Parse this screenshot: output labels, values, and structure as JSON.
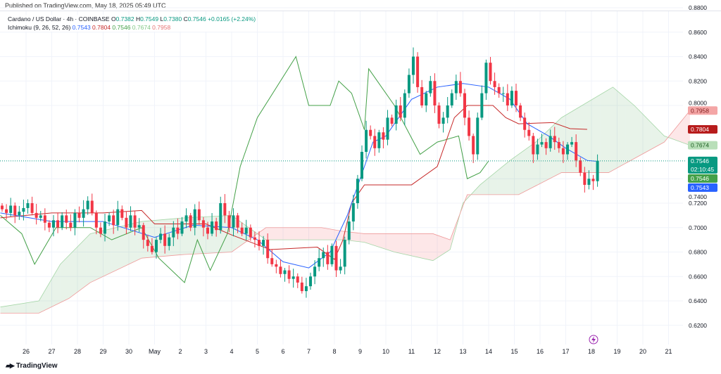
{
  "published": "Published on TradingView.com, May 18, 2025 05:49 UTC",
  "legend": {
    "symbol": "Cardano / US Dollar · 4h · COINBASE",
    "o_label": "O",
    "o": "0.7382",
    "h_label": "H",
    "h": "0.7549",
    "l_label": "L",
    "l": "0.7380",
    "c_label": "C",
    "c": "0.7546",
    "change": "+0.0165 (+2.24%)",
    "ichimoku": "Ichimoku (9, 26, 52, 26)",
    "v1": "0.7543",
    "v2": "0.7804",
    "v3": "0.7546",
    "v4": "0.7674",
    "v5": "0.7958"
  },
  "logo": "TradingView",
  "chart_data": {
    "type": "candlestick",
    "start": "04-25 00",
    "interval_hours": 4,
    "closes": [
      0.715,
      0.712,
      0.718,
      0.71,
      0.713,
      0.716,
      0.72,
      0.712,
      0.708,
      0.71,
      0.704,
      0.7,
      0.706,
      0.7,
      0.71,
      0.704,
      0.7,
      0.712,
      0.708,
      0.715,
      0.722,
      0.712,
      0.7,
      0.695,
      0.705,
      0.71,
      0.702,
      0.715,
      0.708,
      0.7,
      0.71,
      0.7,
      0.702,
      0.69,
      0.685,
      0.68,
      0.69,
      0.695,
      0.685,
      0.692,
      0.7,
      0.695,
      0.705,
      0.71,
      0.7,
      0.715,
      0.706,
      0.7,
      0.695,
      0.705,
      0.698,
      0.72,
      0.71,
      0.7,
      0.71,
      0.7,
      0.695,
      0.7,
      0.692,
      0.69,
      0.685,
      0.69,
      0.675,
      0.67,
      0.668,
      0.662,
      0.665,
      0.658,
      0.66,
      0.655,
      0.648,
      0.652,
      0.66,
      0.668,
      0.675,
      0.68,
      0.67,
      0.685,
      0.665,
      0.668,
      0.69,
      0.705,
      0.72,
      0.74,
      0.762,
      0.78,
      0.775,
      0.765,
      0.778,
      0.772,
      0.79,
      0.785,
      0.8,
      0.79,
      0.81,
      0.825,
      0.84,
      0.815,
      0.8,
      0.81,
      0.82,
      0.8,
      0.785,
      0.79,
      0.8,
      0.81,
      0.82,
      0.81,
      0.79,
      0.775,
      0.76,
      0.79,
      0.81,
      0.835,
      0.82,
      0.815,
      0.81,
      0.81,
      0.8,
      0.812,
      0.8,
      0.79,
      0.78,
      0.775,
      0.76,
      0.768,
      0.77,
      0.765,
      0.775,
      0.77,
      0.765,
      0.76,
      0.768,
      0.77,
      0.755,
      0.745,
      0.735,
      0.74,
      0.738,
      0.7546
    ],
    "ichimoku": {
      "conversion": {
        "color": "#2962ff",
        "points": [
          [
            "04-25 00",
            0.712
          ],
          [
            "04-27 00",
            0.705
          ],
          [
            "04-29 00",
            0.705
          ],
          [
            "05-01 00",
            0.692
          ],
          [
            "05-02 12",
            0.702
          ],
          [
            "05-04 00",
            0.7
          ],
          [
            "05-05 00",
            0.69
          ],
          [
            "05-06 00",
            0.672
          ],
          [
            "05-07 00",
            0.667
          ],
          [
            "05-07 20",
            0.68
          ],
          [
            "05-08 12",
            0.71
          ],
          [
            "05-09 00",
            0.74
          ],
          [
            "05-09 12",
            0.77
          ],
          [
            "05-10 00",
            0.775
          ],
          [
            "05-11 00",
            0.805
          ],
          [
            "05-12 00",
            0.815
          ],
          [
            "05-13 00",
            0.818
          ],
          [
            "05-14 00",
            0.815
          ],
          [
            "05-14 20",
            0.805
          ],
          [
            "05-15 12",
            0.785
          ],
          [
            "05-16 08",
            0.775
          ],
          [
            "05-17 00",
            0.765
          ],
          [
            "05-17 20",
            0.755
          ],
          [
            "05-18 04",
            0.7543
          ]
        ]
      },
      "base": {
        "color": "#c62828",
        "points": [
          [
            "04-25 00",
            0.708
          ],
          [
            "04-27 00",
            0.712
          ],
          [
            "04-29 00",
            0.712
          ],
          [
            "04-30 12",
            0.714
          ],
          [
            "05-01 00",
            0.703
          ],
          [
            "05-03 00",
            0.703
          ],
          [
            "05-04 00",
            0.694
          ],
          [
            "05-05 12",
            0.682
          ],
          [
            "05-07 08",
            0.684
          ],
          [
            "05-08 00",
            0.674
          ],
          [
            "05-08 08",
            0.69
          ],
          [
            "05-08 16",
            0.72
          ],
          [
            "05-09 04",
            0.735
          ],
          [
            "05-11 00",
            0.735
          ],
          [
            "05-12 00",
            0.75
          ],
          [
            "05-12 16",
            0.79
          ],
          [
            "05-13 04",
            0.8
          ],
          [
            "05-14 04",
            0.8
          ],
          [
            "05-14 16",
            0.79
          ],
          [
            "05-15 04",
            0.785
          ],
          [
            "05-16 12",
            0.786
          ],
          [
            "05-17 04",
            0.781
          ],
          [
            "05-17 20",
            0.7804
          ]
        ]
      },
      "lagging": {
        "color": "#43a047",
        "points": [
          [
            "04-25 00",
            0.71
          ],
          [
            "04-25 20",
            0.695
          ],
          [
            "04-26 08",
            0.67
          ],
          [
            "04-27 04",
            0.7
          ],
          [
            "04-28 12",
            0.7
          ],
          [
            "04-29 08",
            0.69
          ],
          [
            "04-30 12",
            0.7
          ],
          [
            "05-01 04",
            0.675
          ],
          [
            "05-02 04",
            0.655
          ],
          [
            "05-02 16",
            0.69
          ],
          [
            "05-03 04",
            0.665
          ],
          [
            "05-03 20",
            0.695
          ],
          [
            "05-04 08",
            0.75
          ],
          [
            "05-04 12",
            0.76
          ],
          [
            "05-05 00",
            0.79
          ],
          [
            "05-06 12",
            0.84
          ],
          [
            "05-07 00",
            0.8
          ],
          [
            "05-07 20",
            0.8
          ],
          [
            "05-08 04",
            0.82
          ],
          [
            "05-08 16",
            0.81
          ],
          [
            "05-09 04",
            0.78
          ],
          [
            "05-09 08",
            0.83
          ],
          [
            "05-09 20",
            0.815
          ],
          [
            "05-10 08",
            0.8
          ],
          [
            "05-10 20",
            0.78
          ],
          [
            "05-11 08",
            0.76
          ],
          [
            "05-12 00",
            0.77
          ],
          [
            "05-12 20",
            0.775
          ],
          [
            "05-13 04",
            0.74
          ],
          [
            "05-13 16",
            0.745
          ],
          [
            "05-14 00",
            0.7546
          ]
        ]
      },
      "leading_a": {
        "color": "#a5d6a7",
        "points": [
          [
            "04-25 00",
            0.635
          ],
          [
            "04-26 12",
            0.64
          ],
          [
            "04-27 08",
            0.67
          ],
          [
            "04-28 12",
            0.695
          ],
          [
            "04-30 12",
            0.705
          ],
          [
            "05-02 04",
            0.708
          ],
          [
            "05-04 00",
            0.71
          ],
          [
            "05-05 08",
            0.69
          ],
          [
            "05-07 12",
            0.69
          ],
          [
            "05-08 08",
            0.69
          ],
          [
            "05-09 04",
            0.688
          ],
          [
            "05-10 08",
            0.68
          ],
          [
            "05-11 20",
            0.673
          ],
          [
            "05-12 12",
            0.682
          ],
          [
            "05-13 00",
            0.72
          ],
          [
            "05-13 16",
            0.735
          ],
          [
            "05-14 20",
            0.755
          ],
          [
            "05-15 20",
            0.77
          ],
          [
            "05-16 20",
            0.79
          ],
          [
            "05-18 20",
            0.815
          ],
          [
            "05-19 16",
            0.8
          ],
          [
            "05-20 20",
            0.775
          ],
          [
            "05-21 20",
            0.7674
          ]
        ]
      },
      "leading_b": {
        "color": "#ef9a9a",
        "points": [
          [
            "04-25 00",
            0.63
          ],
          [
            "04-26 12",
            0.63
          ],
          [
            "04-27 16",
            0.642
          ],
          [
            "04-28 12",
            0.655
          ],
          [
            "04-30 12",
            0.675
          ],
          [
            "05-02 04",
            0.678
          ],
          [
            "05-04 00",
            0.68
          ],
          [
            "05-05 08",
            0.7
          ],
          [
            "05-07 12",
            0.7
          ],
          [
            "05-08 08",
            0.697
          ],
          [
            "05-09 04",
            0.695
          ],
          [
            "05-10 08",
            0.695
          ],
          [
            "05-11 20",
            0.695
          ],
          [
            "05-12 12",
            0.69
          ],
          [
            "05-13 04",
            0.727
          ],
          [
            "05-15 04",
            0.727
          ],
          [
            "05-16 20",
            0.745
          ],
          [
            "05-18 16",
            0.745
          ],
          [
            "05-20 20",
            0.77
          ],
          [
            "05-21 20",
            0.7958
          ]
        ]
      }
    },
    "y_ticks": [
      "0.8800",
      "0.8600",
      "0.8400",
      "0.8200",
      "0.8000",
      "0.7400",
      "0.7200",
      "0.7000",
      "0.6800",
      "0.6600",
      "0.6400",
      "0.6200"
    ],
    "x_ticks": [
      "26",
      "27",
      "28",
      "29",
      "30",
      "May",
      "2",
      "3",
      "4",
      "5",
      "6",
      "7",
      "8",
      "9",
      "10",
      "11",
      "12",
      "13",
      "14",
      "15",
      "16",
      "17",
      "18",
      "19",
      "20",
      "21"
    ],
    "price_labels": [
      {
        "text": "0.7958",
        "value": 0.7958,
        "bg": "#f4a6a6",
        "fg": "#7f1d1d"
      },
      {
        "text": "0.7804",
        "value": 0.7804,
        "bg": "#b71c1c",
        "fg": "#ffffff"
      },
      {
        "text": "0.7674",
        "value": 0.7674,
        "bg": "#b9dfb9",
        "fg": "#1b5e20"
      },
      {
        "text": "0.7546",
        "sub": "02:10:45",
        "value": 0.7546,
        "bg": "#089981",
        "fg": "#ffffff"
      },
      {
        "text": "0.7546",
        "value": 0.7546,
        "bg": "#43a047",
        "fg": "#ffffff"
      },
      {
        "text": "0.7543",
        "value": 0.7543,
        "bg": "#2962ff",
        "fg": "#ffffff"
      }
    ],
    "up_color": "#089981",
    "down_color": "#f23645",
    "last_price": 0.7546
  }
}
